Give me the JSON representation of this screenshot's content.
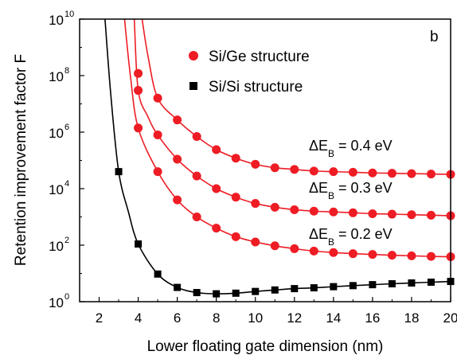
{
  "chart_data": {
    "type": "scatter",
    "panel_label": "b",
    "xlabel": "Lower floating gate dimension (nm)",
    "ylabel": "Retention improvement factor  F",
    "xlim": [
      1,
      20
    ],
    "ylim": [
      1,
      10000000000
    ],
    "yscale": "log",
    "xticks": [
      2,
      4,
      6,
      8,
      10,
      12,
      14,
      16,
      18,
      20
    ],
    "xtick_labels": [
      "2",
      "4",
      "6",
      "8",
      "10",
      "12",
      "14",
      "16",
      "18",
      "20"
    ],
    "yticks": [
      {
        "base": "10",
        "exp": "0",
        "value": 1
      },
      {
        "base": "10",
        "exp": "2",
        "value": 100
      },
      {
        "base": "10",
        "exp": "4",
        "value": 10000
      },
      {
        "base": "10",
        "exp": "6",
        "value": 1000000
      },
      {
        "base": "10",
        "exp": "8",
        "value": 100000000
      },
      {
        "base": "10",
        "exp": "10",
        "value": 10000000000
      }
    ],
    "legend": [
      {
        "label": "Si/Ge structure",
        "marker": "circle",
        "color": "#ee1c24"
      },
      {
        "label": "Si/Si structure",
        "marker": "square",
        "color": "#000000"
      }
    ],
    "series": [
      {
        "legend": "Si/Ge structure",
        "annotation": {
          "prefix": "ΔE",
          "sub": "B",
          "suffix": " = 0.4 eV"
        },
        "color": "#ee1c24",
        "marker": "circle",
        "x": [
          4,
          5,
          6,
          7,
          8,
          9,
          10,
          11,
          12,
          13,
          14,
          15,
          16,
          17,
          18,
          19,
          20
        ],
        "y": [
          120000000,
          16000000,
          2700000,
          700000,
          240000,
          120000,
          73000,
          55000,
          48000,
          42000,
          40000,
          38000,
          36000,
          35000,
          34000,
          33000,
          32000
        ],
        "curve_x": [
          4.2,
          4.5,
          5,
          6,
          7,
          8,
          9,
          10,
          11,
          12,
          13,
          14,
          15,
          16,
          17,
          18,
          19,
          20
        ],
        "curve_y": [
          10000000000,
          500000000,
          16000000,
          2700000,
          700000,
          240000,
          120000,
          73000,
          55000,
          48000,
          42000,
          40000,
          38000,
          36000,
          35000,
          34000,
          33000,
          32000
        ]
      },
      {
        "legend": "Si/Ge structure",
        "annotation": {
          "prefix": "ΔE",
          "sub": "B",
          "suffix": " = 0.3 eV"
        },
        "color": "#ee1c24",
        "marker": "circle",
        "x": [
          4,
          5,
          6,
          7,
          8,
          9,
          10,
          11,
          12,
          13,
          14,
          15,
          16,
          17,
          18,
          19,
          20
        ],
        "y": [
          30000000,
          800000,
          110000,
          28000,
          10000,
          5000,
          3000,
          2200,
          1800,
          1600,
          1500,
          1400,
          1300,
          1250,
          1200,
          1150,
          1100
        ],
        "curve_x": [
          3.8,
          4,
          4.5,
          5,
          6,
          7,
          8,
          9,
          10,
          11,
          12,
          13,
          14,
          15,
          16,
          17,
          18,
          19,
          20
        ],
        "curve_y": [
          10000000000,
          30000000,
          3500000,
          800000,
          110000,
          28000,
          10000,
          5000,
          3000,
          2200,
          1800,
          1600,
          1500,
          1400,
          1300,
          1250,
          1200,
          1150,
          1100
        ]
      },
      {
        "legend": "Si/Ge structure",
        "annotation": {
          "prefix": "ΔE",
          "sub": "B",
          "suffix": " = 0.2 eV"
        },
        "color": "#ee1c24",
        "marker": "circle",
        "x": [
          4,
          5,
          6,
          7,
          8,
          9,
          10,
          11,
          12,
          13,
          14,
          15,
          16,
          17,
          18,
          19,
          20
        ],
        "y": [
          1400000,
          40000,
          4000,
          1000,
          400,
          200,
          130,
          95,
          75,
          62,
          55,
          50,
          47,
          44,
          42,
          40,
          39
        ],
        "curve_x": [
          3.3,
          3.6,
          4,
          5,
          6,
          7,
          8,
          9,
          10,
          11,
          12,
          13,
          14,
          15,
          16,
          17,
          18,
          19,
          20
        ],
        "curve_y": [
          10000000000,
          100000000,
          1400000,
          40000,
          4000,
          1000,
          400,
          200,
          130,
          95,
          75,
          62,
          55,
          50,
          47,
          44,
          42,
          40,
          39
        ],
        "curve_note": "passes through markers"
      },
      {
        "legend": "Si/Si structure",
        "color": "#000000",
        "marker": "square",
        "x": [
          3,
          4,
          5,
          6,
          7,
          8,
          9,
          10,
          11,
          12,
          13,
          14,
          15,
          16,
          17,
          18,
          19,
          20
        ],
        "y": [
          40000,
          110,
          9.5,
          3.2,
          2.1,
          1.9,
          2.0,
          2.3,
          2.6,
          2.9,
          3.1,
          3.4,
          3.7,
          4.0,
          4.3,
          4.6,
          4.9,
          5.2
        ],
        "curve_x": [
          2.3,
          2.6,
          3,
          3.5,
          4,
          5,
          6,
          7,
          8,
          9,
          10,
          11,
          12,
          13,
          14,
          15,
          16,
          17,
          18,
          19,
          20
        ],
        "curve_y": [
          10000000000,
          20000000,
          40000,
          1500,
          110,
          9.5,
          3.2,
          2.1,
          1.9,
          2.0,
          2.3,
          2.6,
          2.9,
          3.1,
          3.4,
          3.7,
          4.0,
          4.3,
          4.6,
          4.9,
          5.2
        ]
      }
    ]
  }
}
